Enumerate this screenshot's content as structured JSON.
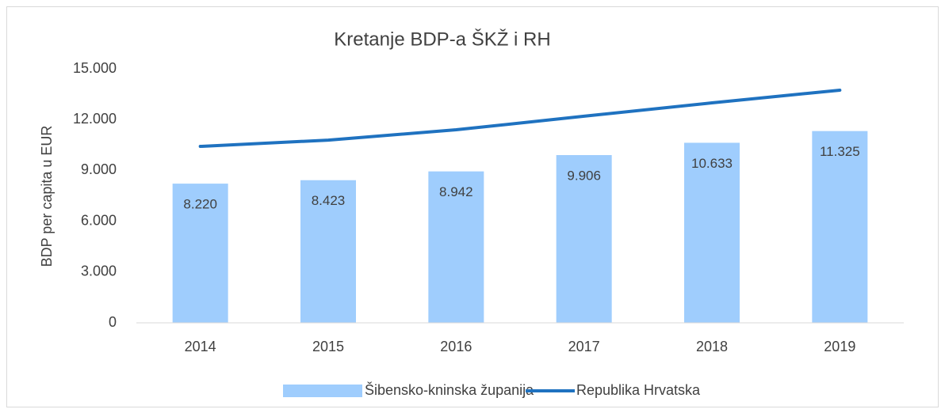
{
  "chart_data": {
    "type": "bar_line",
    "title": "Kretanje BDP-a ŠKŽ i RH",
    "ylabel": "BDP per capita u EUR",
    "categories": [
      "2014",
      "2015",
      "2016",
      "2017",
      "2018",
      "2019"
    ],
    "series": [
      {
        "name": "Šibensko-kninska županija",
        "type": "bar",
        "color": "#9fcdfd",
        "values": [
          8220,
          8423,
          8942,
          9906,
          10633,
          11325
        ],
        "value_labels": [
          "8.220",
          "8.423",
          "8.942",
          "9.906",
          "10.633",
          "11.325"
        ]
      },
      {
        "name": "Republika Hrvatska",
        "type": "line",
        "color": "#1f72c0",
        "values": [
          10420,
          10790,
          11400,
          12200,
          12990,
          13740
        ]
      }
    ],
    "ylim": [
      0,
      15000
    ],
    "yticks": [
      0,
      {
        "value": 3000,
        "label": "3.000"
      },
      {
        "value": 6000,
        "label": "6.000"
      },
      {
        "value": 9000,
        "label": "9.000"
      },
      {
        "value": 12000,
        "label": "12.000"
      },
      {
        "value": 15000,
        "label": "15.000"
      }
    ],
    "grid": false,
    "legend": "bottom"
  }
}
